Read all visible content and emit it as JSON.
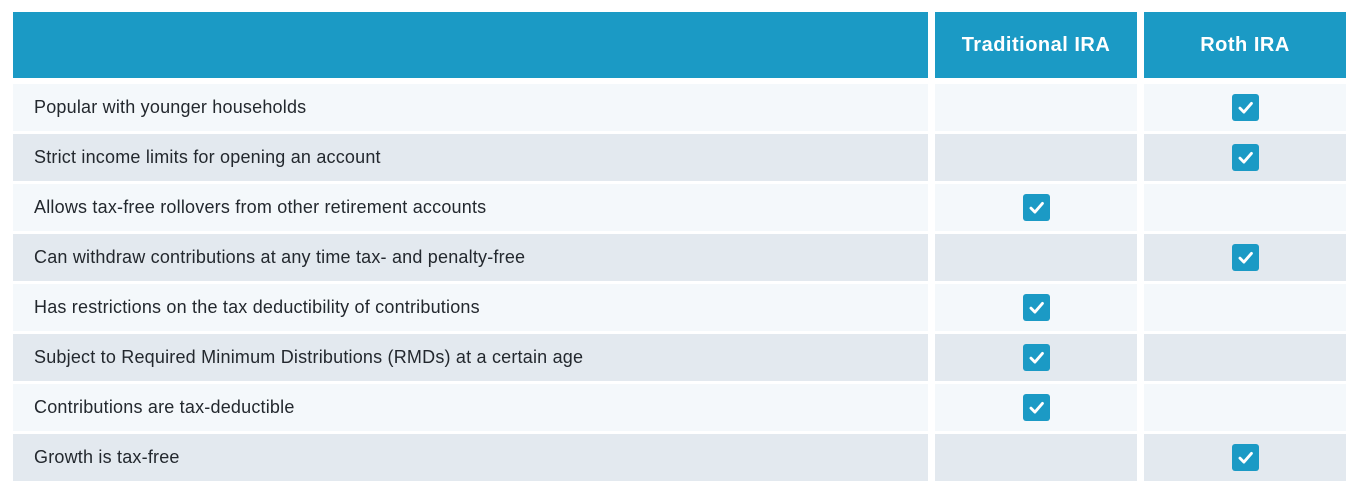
{
  "table": {
    "header": {
      "feature": "",
      "traditional": "Traditional IRA",
      "roth": "Roth IRA"
    },
    "rows": [
      {
        "feature": "Popular with younger households",
        "traditional": false,
        "roth": true
      },
      {
        "feature": "Strict income limits for opening an account",
        "traditional": false,
        "roth": true
      },
      {
        "feature": "Allows tax-free rollovers from other retirement accounts",
        "traditional": true,
        "roth": false
      },
      {
        "feature": "Can withdraw contributions at any time tax- and penalty-free",
        "traditional": false,
        "roth": true
      },
      {
        "feature": "Has restrictions on the tax deductibility of contributions",
        "traditional": true,
        "roth": false
      },
      {
        "feature": "Subject to Required Minimum Distributions (RMDs) at a certain age",
        "traditional": true,
        "roth": false
      },
      {
        "feature": "Contributions are tax-deductible",
        "traditional": true,
        "roth": false
      },
      {
        "feature": "Growth is tax-free",
        "traditional": false,
        "roth": true
      }
    ],
    "colors": {
      "header_bg": "#1b9ac5",
      "check_bg": "#1b9ac5",
      "row_odd": "#f4f8fb",
      "row_even": "#e3e9ef",
      "text": "#23282e",
      "header_text": "#ffffff"
    },
    "icons": {
      "check": "check-icon"
    }
  }
}
